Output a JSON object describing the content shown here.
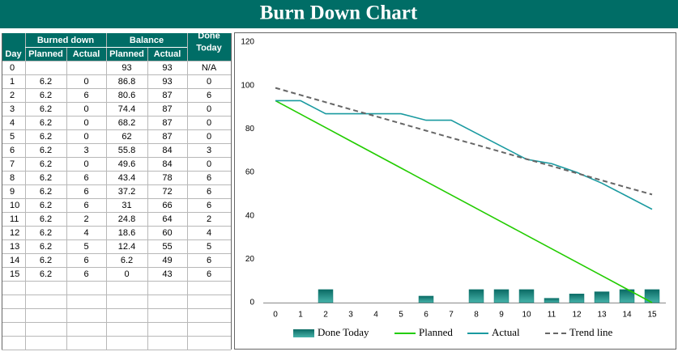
{
  "title": "Burn Down Chart",
  "table": {
    "group_headers": [
      "Burned down",
      "Balance",
      "Done Today"
    ],
    "headers": [
      "Day",
      "Planned",
      "Actual",
      "Planned",
      "Actual"
    ],
    "rows": [
      [
        0,
        null,
        null,
        93,
        93,
        "N/A"
      ],
      [
        1,
        6.2,
        0,
        86.8,
        93,
        0
      ],
      [
        2,
        6.2,
        6,
        80.6,
        87,
        6
      ],
      [
        3,
        6.2,
        0,
        74.4,
        87,
        0
      ],
      [
        4,
        6.2,
        0,
        68.2,
        87,
        0
      ],
      [
        5,
        6.2,
        0,
        62,
        87,
        0
      ],
      [
        6,
        6.2,
        3,
        55.8,
        84,
        3
      ],
      [
        7,
        6.2,
        0,
        49.6,
        84,
        0
      ],
      [
        8,
        6.2,
        6,
        43.4,
        78,
        6
      ],
      [
        9,
        6.2,
        6,
        37.2,
        72,
        6
      ],
      [
        10,
        6.2,
        6,
        31,
        66,
        6
      ],
      [
        11,
        6.2,
        2,
        24.8,
        64,
        2
      ],
      [
        12,
        6.2,
        4,
        18.6,
        60,
        4
      ],
      [
        13,
        6.2,
        5,
        12.4,
        55,
        5
      ],
      [
        14,
        6.2,
        6,
        6.2,
        49,
        6
      ],
      [
        15,
        6.2,
        6,
        0,
        43,
        6
      ]
    ]
  },
  "chart_data": {
    "type": "bar-line",
    "categories": [
      0,
      1,
      2,
      3,
      4,
      5,
      6,
      7,
      8,
      9,
      10,
      11,
      12,
      13,
      14,
      15
    ],
    "ylim": [
      0,
      120
    ],
    "yticks": [
      0,
      20,
      40,
      60,
      80,
      100,
      120
    ],
    "series": [
      {
        "name": "Done Today",
        "type": "bar",
        "color": "#127a73",
        "values": [
          null,
          0,
          6,
          0,
          0,
          0,
          3,
          0,
          6,
          6,
          6,
          2,
          4,
          5,
          6,
          6
        ]
      },
      {
        "name": "Planned",
        "type": "line",
        "color": "#22cc00",
        "values": [
          93,
          86.8,
          80.6,
          74.4,
          68.2,
          62,
          55.8,
          49.6,
          43.4,
          37.2,
          31,
          24.8,
          18.6,
          12.4,
          6.2,
          0
        ]
      },
      {
        "name": "Actual",
        "type": "line",
        "color": "#1a9aa0",
        "values": [
          93,
          93,
          87,
          87,
          87,
          87,
          84,
          84,
          78,
          72,
          66,
          64,
          60,
          55,
          49,
          43
        ]
      },
      {
        "name": "Trend line",
        "type": "line",
        "dashed": true,
        "color": "#666666",
        "values": [
          98.9,
          95.6,
          92.3,
          89.0,
          85.8,
          82.5,
          79.2,
          75.9,
          72.7,
          69.4,
          66.1,
          62.9,
          59.6,
          56.3,
          53.0,
          49.8
        ]
      }
    ]
  }
}
